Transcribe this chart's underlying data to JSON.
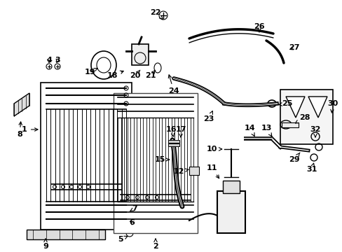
{
  "background_color": "#ffffff",
  "line_color": "#000000",
  "fig_w": 4.89,
  "fig_h": 3.6,
  "dpi": 100
}
